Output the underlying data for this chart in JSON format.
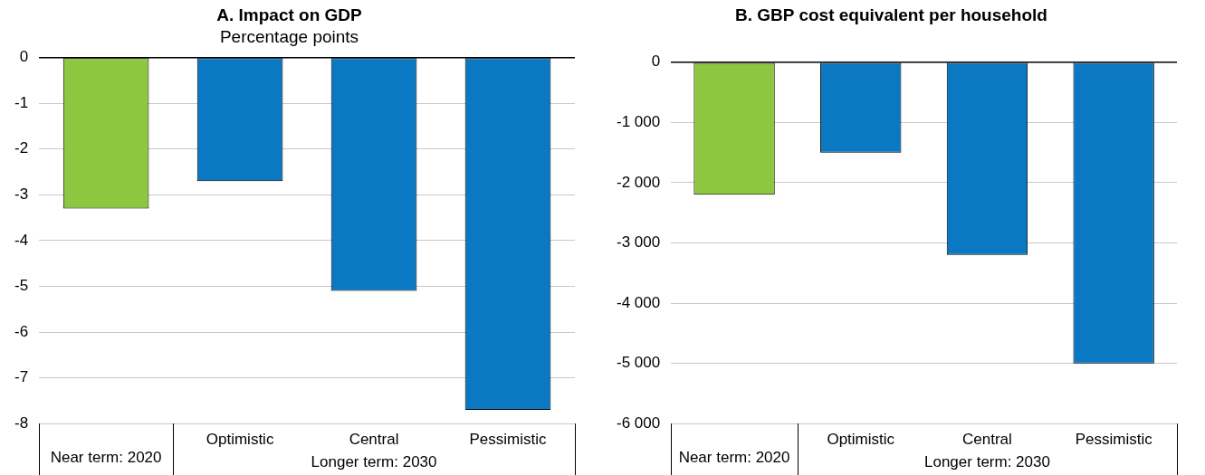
{
  "chart_data": [
    {
      "type": "bar",
      "title": "A. Impact on GDP",
      "subtitle": "Percentage points",
      "categories": [
        "Near term: 2020",
        "Optimistic",
        "Central",
        "Pessimistic"
      ],
      "values": [
        -3.3,
        -2.7,
        -5.1,
        -7.7
      ],
      "colors": [
        "#8dc63f",
        "#0a78c2",
        "#0a78c2",
        "#0a78c2"
      ],
      "ylim": [
        -8,
        0
      ],
      "yticks": [
        -8,
        -7,
        -6,
        -5,
        -4,
        -3,
        -2,
        -1,
        0
      ],
      "grid": "y",
      "annotations": [
        "Longer term: 2030"
      ]
    },
    {
      "type": "bar",
      "title": "B. GBP cost equivalent per household",
      "categories": [
        "Near term: 2020",
        "Optimistic",
        "Central",
        "Pessimistic"
      ],
      "values": [
        -2200,
        -1500,
        -3200,
        -5000
      ],
      "colors": [
        "#8dc63f",
        "#0a78c2",
        "#0a78c2",
        "#0a78c2"
      ],
      "ylim": [
        -6000,
        0
      ],
      "yticks": [
        {
          "value": -6000,
          "label": "-6 000"
        },
        {
          "value": -5000,
          "label": "-5 000"
        },
        {
          "value": -4000,
          "label": "-4 000"
        },
        {
          "value": -3000,
          "label": "-3 000"
        },
        {
          "value": -2000,
          "label": "-2 000"
        },
        {
          "value": -1000,
          "label": "-1 000"
        },
        0
      ],
      "grid": "y",
      "annotations": [
        "Longer term: 2030"
      ]
    }
  ]
}
